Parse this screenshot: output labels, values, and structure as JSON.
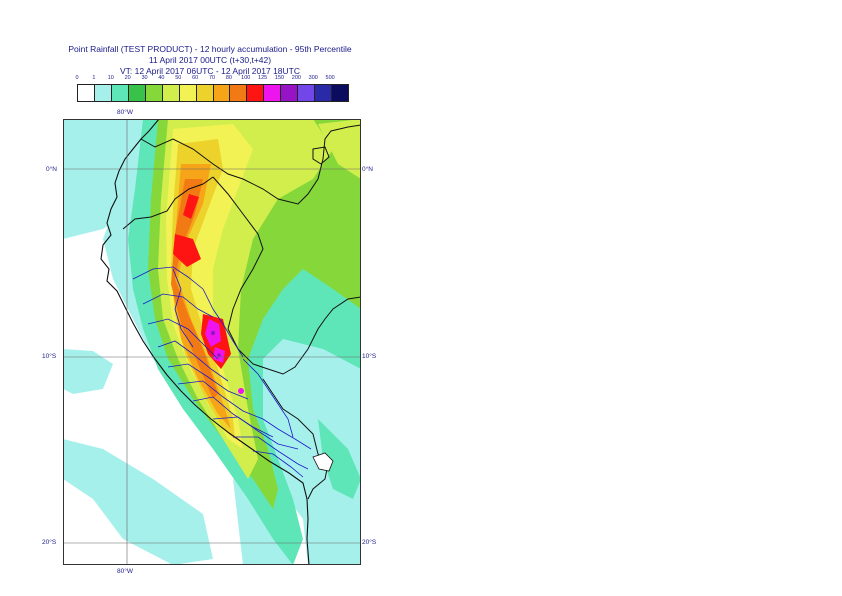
{
  "header": {
    "line1": "Point Rainfall (TEST PRODUCT) - 12 hourly accumulation - 95th Percentile",
    "line2": "11 April 2017 00UTC (t+30,t+42)",
    "line3": "VT: 12 April 2017 06UTC - 12 April 2017 18UTC"
  },
  "legend": {
    "labels": [
      "0",
      "1",
      "10",
      "20",
      "30",
      "40",
      "50",
      "60",
      "70",
      "80",
      "100",
      "125",
      "150",
      "200",
      "300",
      "500"
    ],
    "colors": [
      "#ffffff",
      "#a6f0ec",
      "#5ee6b8",
      "#38c24a",
      "#86d83a",
      "#d2ee4c",
      "#f2f254",
      "#eed22c",
      "#f6a418",
      "#f27a14",
      "#ff1414",
      "#ee14ee",
      "#9614c6",
      "#7246e8",
      "#2a2aa8",
      "#0c0c5e"
    ]
  },
  "map": {
    "lon_label_top": "80°W",
    "lon_label_bottom": "80°W",
    "lat_labels_left": [
      "0°N",
      "10°S",
      "20°S"
    ],
    "lat_labels_right": [
      "0°N",
      "10°S",
      "20°S"
    ]
  }
}
